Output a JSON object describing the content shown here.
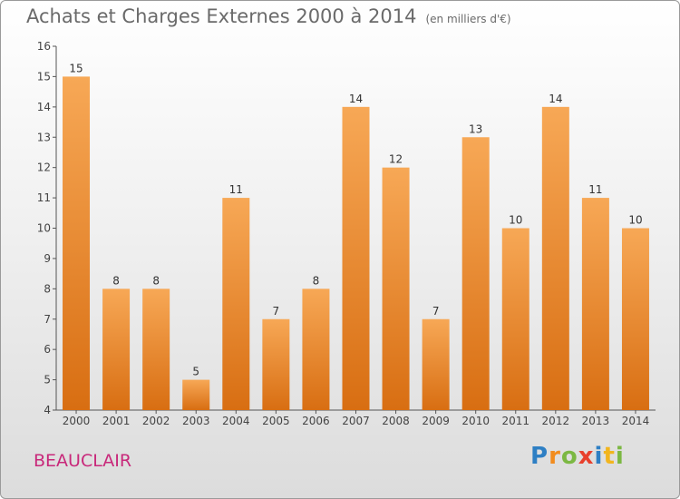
{
  "header": {
    "title": "Achats et Charges Externes 2000 à 2014",
    "unit": "(en milliers d'€)"
  },
  "commune_name": "BEAUCLAIR",
  "logo": {
    "letters": [
      "P",
      "r",
      "o",
      "x",
      "i",
      "t",
      "i"
    ],
    "colors": [
      "#2e7fc4",
      "#f28c1e",
      "#7cb843",
      "#e8402d",
      "#2e7fc4",
      "#f2b51e",
      "#7cb843"
    ]
  },
  "colors": {
    "bar_top": "#f7a856",
    "bar_bottom": "#d86e12",
    "label": "#333333"
  },
  "chart_data": {
    "type": "bar",
    "title": "Achats et Charges Externes 2000 à 2014",
    "xlabel": "",
    "ylabel": "",
    "categories": [
      "2000",
      "2001",
      "2002",
      "2003",
      "2004",
      "2005",
      "2006",
      "2007",
      "2008",
      "2009",
      "2010",
      "2011",
      "2012",
      "2013",
      "2014"
    ],
    "values": [
      15,
      8,
      8,
      5,
      11,
      7,
      8,
      14,
      12,
      7,
      13,
      10,
      14,
      11,
      10
    ],
    "ylim": [
      4,
      16
    ],
    "yticks": [
      4,
      5,
      6,
      7,
      8,
      9,
      10,
      11,
      12,
      13,
      14,
      15,
      16
    ],
    "grid": false,
    "data_labels": true
  }
}
